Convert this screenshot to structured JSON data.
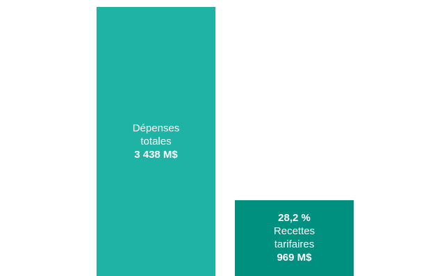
{
  "chart_data": {
    "type": "bar",
    "title": "",
    "xlabel": "",
    "ylabel": "",
    "ylim": [
      0,
      3438
    ],
    "grid": false,
    "legend": "none",
    "categories": [
      "Dépenses totales",
      "Recettes tarifaires"
    ],
    "values": [
      3438,
      969
    ],
    "colors": [
      "#1fb3a6",
      "#00907f"
    ],
    "bars": [
      {
        "lines": [
          "Dépenses",
          "totales"
        ],
        "value_label": "3 438 M$"
      },
      {
        "percent_label": "28,2 %",
        "lines": [
          "Recettes",
          "tarifaires"
        ],
        "value_label": "969 M$"
      }
    ]
  }
}
